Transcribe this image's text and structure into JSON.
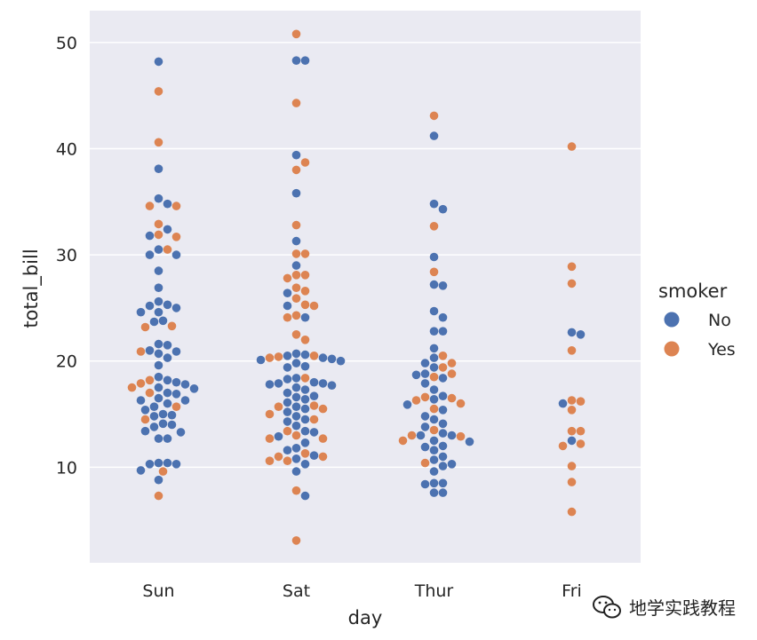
{
  "chart_data": {
    "type": "scatter",
    "style": "swarm",
    "xlabel": "day",
    "ylabel": "total_bill",
    "categories": [
      "Sun",
      "Sat",
      "Thur",
      "Fri"
    ],
    "ylim": [
      1,
      53
    ],
    "yticks": [
      10,
      20,
      30,
      40,
      50
    ],
    "grid": true,
    "background": "#eaeaf2",
    "legend": {
      "title": "smoker",
      "placement": "right",
      "entries": [
        {
          "label": "No",
          "color": "#4c72b0"
        },
        {
          "label": "Yes",
          "color": "#dd8452"
        }
      ]
    },
    "series": [
      {
        "name": "No",
        "color": "#4c72b0",
        "values": {
          "Sun": [
            48.2,
            38.1,
            35.3,
            34.8,
            32.4,
            31.8,
            30.5,
            30.0,
            30.0,
            28.5,
            26.9,
            25.6,
            25.3,
            25.2,
            25.0,
            24.6,
            24.6,
            23.7,
            23.8,
            21.6,
            21.5,
            21.0,
            20.9,
            20.7,
            20.3,
            19.6,
            18.5,
            18.2,
            18.0,
            17.8,
            17.5,
            17.4,
            17.0,
            16.9,
            16.5,
            16.3,
            16.3,
            16.0,
            15.7,
            15.4,
            15.0,
            14.9,
            14.8,
            14.1,
            14.0,
            13.8,
            13.4,
            13.3,
            12.7,
            12.7,
            10.4,
            10.4,
            10.3,
            10.3,
            9.7,
            8.8
          ],
          "Sat": [
            48.3,
            48.3,
            39.4,
            35.8,
            31.3,
            29.0,
            26.4,
            25.2,
            24.1,
            20.7,
            20.6,
            20.5,
            20.3,
            20.2,
            20.1,
            20.0,
            19.8,
            19.5,
            19.4,
            18.4,
            18.3,
            18.0,
            17.9,
            17.9,
            17.8,
            17.7,
            17.5,
            17.3,
            17.0,
            16.7,
            16.6,
            16.4,
            16.1,
            15.7,
            15.5,
            15.2,
            14.8,
            14.5,
            14.3,
            13.9,
            13.4,
            13.3,
            12.9,
            12.3,
            11.8,
            11.6,
            11.1,
            10.8,
            10.3,
            9.6,
            7.3
          ],
          "Thur": [
            41.2,
            34.8,
            34.3,
            29.8,
            27.2,
            27.1,
            24.7,
            24.1,
            22.8,
            22.8,
            21.2,
            20.3,
            19.8,
            19.4,
            18.8,
            18.7,
            18.4,
            17.9,
            17.3,
            16.7,
            16.4,
            15.9,
            15.4,
            14.8,
            14.5,
            14.1,
            13.8,
            13.2,
            13.0,
            13.0,
            12.5,
            12.4,
            12.0,
            11.9,
            11.6,
            11.0,
            10.7,
            10.3,
            10.1,
            9.6,
            8.5,
            8.4,
            8.5,
            7.6,
            7.6
          ],
          "Fri": [
            22.7,
            22.5,
            16.0,
            12.5
          ]
        }
      },
      {
        "name": "Yes",
        "color": "#dd8452",
        "values": {
          "Sun": [
            45.4,
            40.6,
            34.6,
            34.6,
            32.9,
            31.9,
            31.7,
            30.5,
            23.3,
            23.2,
            20.9,
            18.2,
            17.9,
            17.5,
            17.0,
            15.7,
            14.5,
            9.6,
            7.3
          ],
          "Sat": [
            50.8,
            44.3,
            38.7,
            38.0,
            32.8,
            30.1,
            30.1,
            28.1,
            28.1,
            27.8,
            26.9,
            26.6,
            25.9,
            25.3,
            25.2,
            24.3,
            24.1,
            22.5,
            22.0,
            20.5,
            20.4,
            20.3,
            18.4,
            15.8,
            15.7,
            15.5,
            15.0,
            14.5,
            13.4,
            13.0,
            12.7,
            12.7,
            11.3,
            11.0,
            11.0,
            10.6,
            10.6,
            7.8,
            3.1
          ],
          "Thur": [
            43.1,
            32.7,
            28.4,
            20.5,
            19.8,
            19.4,
            18.8,
            18.5,
            16.6,
            16.5,
            16.3,
            16.0,
            15.5,
            13.5,
            13.0,
            12.9,
            12.5,
            10.4
          ],
          "Fri": [
            40.2,
            28.9,
            27.3,
            21.0,
            16.3,
            16.2,
            15.4,
            13.4,
            13.4,
            12.2,
            12.0,
            10.1,
            8.6,
            5.8
          ]
        }
      }
    ]
  },
  "watermark": {
    "text": "地学实践教程",
    "icon": "wechat-icon"
  }
}
